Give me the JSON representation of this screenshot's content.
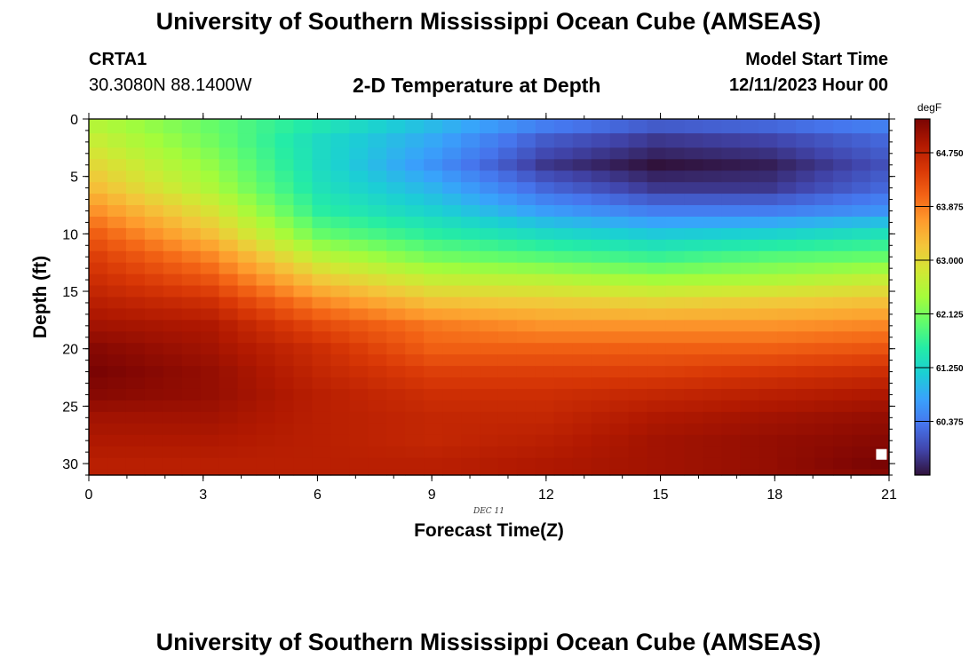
{
  "page": {
    "title": "University of Southern Mississippi Ocean Cube (AMSEAS)",
    "bottom_title": "University of Southern Mississippi Ocean Cube (AMSEAS)",
    "station_id": "CRTA1",
    "station_coords": "30.3080N  88.1400W",
    "subtitle": "2-D Temperature at Depth",
    "model_start_label": "Model Start Time",
    "model_start_value": "12/11/2023 Hour 00"
  },
  "colors": {
    "scale": [
      "#30123b",
      "#4145ab",
      "#4675ed",
      "#39a2fc",
      "#1bcfd4",
      "#24eca6",
      "#61fc6c",
      "#a4fc3b",
      "#d1e834",
      "#f3c63a",
      "#fe9b2d",
      "#f36315",
      "#d93806",
      "#b11901",
      "#7a0403"
    ],
    "marker": "#ffffff"
  },
  "chart_data": {
    "type": "heatmap",
    "title": "2-D Temperature at Depth",
    "xlabel": "Forecast Time(Z)",
    "ylabel": "Depth (ft)",
    "x_annotation": "DEC 11",
    "xlim": [
      0,
      21
    ],
    "ylim": [
      0,
      31
    ],
    "y_inverted": true,
    "x_ticks": [
      0,
      3,
      6,
      9,
      12,
      15,
      18,
      21
    ],
    "y_ticks": [
      0,
      5,
      10,
      15,
      20,
      25,
      30
    ],
    "colorbar": {
      "unit": "degF",
      "min": 59.5,
      "max": 65.3,
      "ticks": [
        64.75,
        63.875,
        63.0,
        62.125,
        61.25,
        60.375
      ],
      "tick_labels": [
        "64.750",
        "63.875",
        "63.000",
        "62.125",
        "61.250",
        "60.375"
      ]
    },
    "grid_rows": [
      "0.5",
      "2",
      "3",
      "4",
      "5",
      "6",
      "7",
      "8",
      "9",
      "10",
      "11",
      "12",
      "13",
      "14",
      "15",
      "16",
      "17",
      "18",
      "19",
      "20",
      "21",
      "22",
      "23",
      "24",
      "25",
      "26",
      "27",
      "28",
      "29",
      "30",
      "31"
    ],
    "grid_cols_hours": [
      0,
      0.5,
      1,
      1.5,
      2,
      2.5,
      3,
      3.5,
      4,
      4.5,
      5,
      5.5,
      6,
      6.5,
      7,
      7.5,
      8,
      8.5,
      9,
      9.5,
      10,
      10.5,
      11,
      11.5,
      12,
      12.5,
      13,
      13.5,
      14,
      14.5,
      15,
      15.5,
      16,
      16.5,
      17,
      17.5,
      18,
      18.5,
      19,
      19.5,
      20,
      20.5,
      21
    ],
    "temperature_profiles_degF": {
      "depths_ft": [
        0,
        2,
        4,
        6,
        8,
        10,
        12,
        14,
        16,
        18,
        20,
        22,
        24,
        26,
        28,
        30,
        31
      ],
      "times_hours": [
        0,
        3,
        6,
        9,
        12,
        15,
        18,
        21
      ],
      "values": [
        [
          62.5,
          62.0,
          61.5,
          61.0,
          60.5,
          60.2,
          60.3,
          60.5
        ],
        [
          62.7,
          62.1,
          61.3,
          60.8,
          60.1,
          59.8,
          59.9,
          60.2
        ],
        [
          63.0,
          62.3,
          61.3,
          60.6,
          59.8,
          59.5,
          59.6,
          60.0
        ],
        [
          63.3,
          62.5,
          61.4,
          60.9,
          60.2,
          59.8,
          59.8,
          60.2
        ],
        [
          63.7,
          62.9,
          61.6,
          61.2,
          60.7,
          60.4,
          60.4,
          60.6
        ],
        [
          64.1,
          63.3,
          62.0,
          61.6,
          61.3,
          61.1,
          61.2,
          61.4
        ],
        [
          64.4,
          63.8,
          62.6,
          62.1,
          61.9,
          61.7,
          61.9,
          62.0
        ],
        [
          64.6,
          64.2,
          63.2,
          62.7,
          62.6,
          62.4,
          62.5,
          62.7
        ],
        [
          64.8,
          64.6,
          63.8,
          63.3,
          63.2,
          63.1,
          63.2,
          63.3
        ],
        [
          65.0,
          64.9,
          64.3,
          63.9,
          63.7,
          63.7,
          63.7,
          63.8
        ],
        [
          65.2,
          65.0,
          64.6,
          64.1,
          64.1,
          64.1,
          64.1,
          64.2
        ],
        [
          65.3,
          65.1,
          64.7,
          64.4,
          64.4,
          64.4,
          64.5,
          64.6
        ],
        [
          65.2,
          65.1,
          64.8,
          64.6,
          64.6,
          64.7,
          64.8,
          64.9
        ],
        [
          65.0,
          65.0,
          64.8,
          64.7,
          64.7,
          64.9,
          65.0,
          65.1
        ],
        [
          64.9,
          64.9,
          64.8,
          64.7,
          64.8,
          65.0,
          65.1,
          65.2
        ],
        [
          64.8,
          64.8,
          64.8,
          64.8,
          64.9,
          65.0,
          65.1,
          65.3
        ],
        [
          64.8,
          64.8,
          64.8,
          64.8,
          64.9,
          65.0,
          65.1,
          65.2
        ]
      ]
    },
    "marker": {
      "x": 20.8,
      "y": 29.2
    }
  }
}
